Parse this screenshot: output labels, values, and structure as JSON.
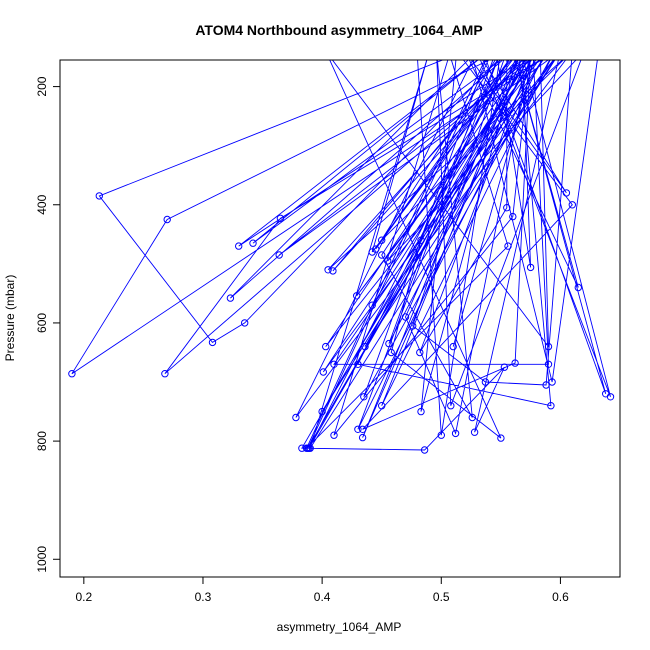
{
  "chart_data": {
    "type": "scatter",
    "title": "ATOM4 Northbound asymmetry_1064_AMP",
    "xlabel": "asymmetry_1064_AMP",
    "ylabel": "Pressure (mbar)",
    "xlim": [
      0.18,
      0.65
    ],
    "ylim": [
      1030,
      155
    ],
    "y_reversed": true,
    "x_ticks": [
      0.2,
      0.3,
      0.4,
      0.5,
      0.6
    ],
    "x_tick_labels": [
      "0.2",
      "0.3",
      "0.4",
      "0.5",
      "0.6"
    ],
    "y_ticks": [
      200,
      400,
      600,
      800,
      1000
    ],
    "y_tick_labels": [
      "200",
      "400",
      "600",
      "800",
      "1000"
    ],
    "grid": false,
    "legend": "none",
    "series_color": "#0000ff",
    "series": [
      {
        "x": [
          0.52,
          0.213,
          0.308,
          0.335,
          0.555,
          0.27,
          0.19,
          0.595,
          0.365,
          0.268,
          0.58,
          0.33,
          0.54,
          0.342,
          0.56,
          0.323,
          0.53,
          0.378,
          0.61,
          0.405,
          0.57,
          0.442,
          0.49,
          0.39,
          0.6,
          0.364,
          0.585,
          0.429,
          0.588,
          0.43,
          0.55,
          0.445,
          0.565,
          0.54,
          0.435,
          0.595,
          0.45,
          0.57,
          0.403,
          0.6,
          0.436,
          0.575,
          0.512,
          0.47,
          0.568,
          0.575,
          0.546,
          0.456,
          0.583,
          0.59,
          0.403,
          0.55,
          0.458,
          0.483,
          0.55,
          0.5,
          0.48,
          0.578,
          0.401,
          0.6,
          0.528,
          0.553,
          0.486,
          0.383,
          0.575,
          0.455,
          0.62,
          0.508,
          0.496,
          0.526,
          0.45,
          0.562,
          0.45,
          0.61,
          0.588,
          0.537,
          0.476,
          0.555,
          0.555,
          0.482,
          0.578,
          0.442,
          0.54,
          0.387,
          0.556,
          0.507,
          0.41,
          0.56,
          0.575,
          0.562,
          0.434,
          0.61,
          0.513,
          0.483,
          0.565,
          0.409,
          0.575,
          0.434,
          0.565,
          0.592,
          0.43,
          0.56,
          0.389,
          0.58,
          0.51,
          0.58,
          0.388,
          0.543,
          0.577,
          0.59,
          0.41,
          0.59,
          0.4,
          0.58,
          0.53,
          0.605,
          0.52,
          0.615,
          0.56,
          0.638,
          0.535,
          0.525,
          0.593,
          0.632,
          0.567,
          0.642,
          0.53
        ],
        "y": [
          140,
          385,
          633,
          600,
          140,
          425,
          686,
          140,
          423,
          686,
          140,
          470,
          140,
          465,
          140,
          558,
          140,
          760,
          140,
          510,
          140,
          480,
          140,
          812,
          140,
          485,
          140,
          554,
          140,
          780,
          140,
          475,
          140,
          140,
          725,
          140,
          740,
          140,
          640,
          140,
          640,
          140,
          787,
          590,
          140,
          506,
          140,
          635,
          140,
          640,
          140,
          795,
          650,
          460,
          140,
          790,
          150,
          140,
          683,
          140,
          785,
          675,
          815,
          812,
          140,
          495,
          140,
          740,
          140,
          760,
          485,
          140,
          460,
          140,
          705,
          700,
          605,
          140,
          405,
          650,
          140,
          570,
          140,
          812,
          470,
          145,
          790,
          420,
          140,
          668,
          780,
          400,
          140,
          750,
          140,
          512,
          140,
          794,
          140,
          740,
          670,
          140,
          812,
          140,
          640,
          140,
          812,
          140,
          140,
          670,
          670,
          140,
          750,
          140,
          140,
          380,
          140,
          540,
          140,
          720,
          140,
          140,
          700,
          140,
          140,
          725,
          140
        ],
        "y_note": ""
      }
    ]
  }
}
